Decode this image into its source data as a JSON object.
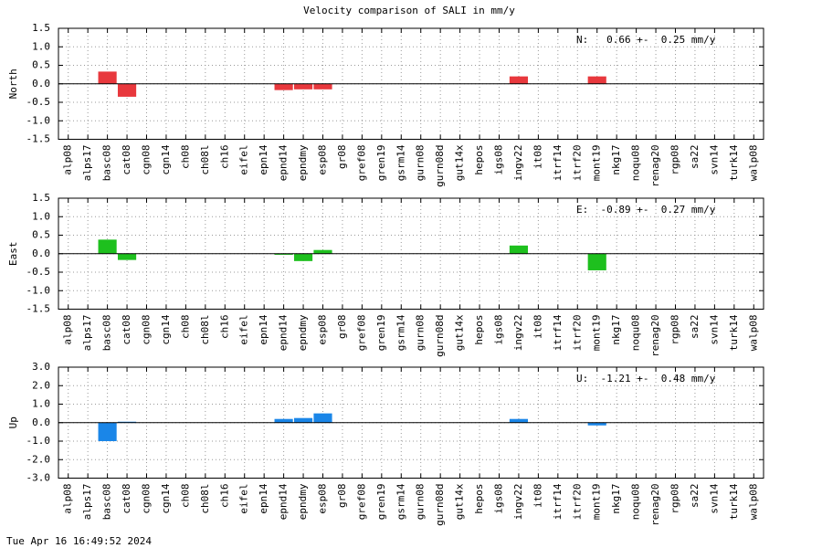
{
  "title": "Velocity comparison of SALI in mm/y",
  "timestamp": "Tue Apr 16 16:49:52 2024",
  "chart_data": [
    {
      "type": "bar",
      "ylabel": "North",
      "annotation": "N:   0.66 +-  0.25 mm/y",
      "color": "#e8383d",
      "categories": [
        "alp08",
        "alps17",
        "basc08",
        "cat08",
        "cgn08",
        "cgn14",
        "ch08",
        "ch08l",
        "ch16",
        "eifel",
        "epn14",
        "epnd14",
        "epndmy",
        "esp08",
        "gr08",
        "gref08",
        "gren19",
        "gsrm14",
        "gurn08",
        "gurn08d",
        "gut14x",
        "hepos",
        "igs08",
        "ingv22",
        "it08",
        "itrf14",
        "itrf20",
        "mont19",
        "nkg17",
        "noqu08",
        "renag20",
        "rgp08",
        "sa22",
        "svn14",
        "turk14",
        "walp08"
      ],
      "values": [
        0,
        0,
        0.33,
        -0.35,
        0,
        0,
        0,
        0,
        0,
        0,
        0,
        -0.17,
        -0.15,
        -0.15,
        0,
        0,
        0,
        0,
        0,
        0,
        0,
        0,
        0,
        0.2,
        0,
        0,
        0,
        0.2,
        0,
        0,
        0,
        0,
        0,
        0,
        0,
        0
      ],
      "ylim": [
        -1.5,
        1.5
      ],
      "yticks": [
        -1.5,
        {
          "value": -1,
          "label": "-1.0"
        },
        -0.5,
        {
          "value": 0,
          "label": "0.0"
        },
        0.5,
        {
          "value": 1,
          "label": "1.0"
        },
        1.5
      ],
      "grid": true
    },
    {
      "type": "bar",
      "ylabel": "East",
      "annotation": "E:  -0.89 +-  0.27 mm/y",
      "color": "#1ec01e",
      "categories": [
        "alp08",
        "alps17",
        "basc08",
        "cat08",
        "cgn08",
        "cgn14",
        "ch08",
        "ch08l",
        "ch16",
        "eifel",
        "epn14",
        "epnd14",
        "epndmy",
        "esp08",
        "gr08",
        "gref08",
        "gren19",
        "gsrm14",
        "gurn08",
        "gurn08d",
        "gut14x",
        "hepos",
        "igs08",
        "ingv22",
        "it08",
        "itrf14",
        "itrf20",
        "mont19",
        "nkg17",
        "noqu08",
        "renag20",
        "rgp08",
        "sa22",
        "svn14",
        "turk14",
        "walp08"
      ],
      "values": [
        0,
        0,
        0.38,
        -0.17,
        0,
        0,
        0,
        0,
        0,
        0,
        0,
        -0.03,
        -0.2,
        0.1,
        0,
        0,
        0,
        0,
        0,
        0,
        0,
        0,
        0,
        0.22,
        0,
        0,
        0,
        -0.45,
        0,
        0,
        0,
        0,
        0,
        0,
        0,
        0
      ],
      "ylim": [
        -1.5,
        1.5
      ],
      "yticks": [
        -1.5,
        {
          "value": -1,
          "label": "-1.0"
        },
        -0.5,
        {
          "value": 0,
          "label": "0.0"
        },
        0.5,
        {
          "value": 1,
          "label": "1.0"
        },
        1.5
      ],
      "grid": true
    },
    {
      "type": "bar",
      "ylabel": "Up",
      "annotation": "U:  -1.21 +-  0.48 mm/y",
      "color": "#1a86e8",
      "categories": [
        "alp08",
        "alps17",
        "basc08",
        "cat08",
        "cgn08",
        "cgn14",
        "ch08",
        "ch08l",
        "ch16",
        "eifel",
        "epn14",
        "epnd14",
        "epndmy",
        "esp08",
        "gr08",
        "gref08",
        "gren19",
        "gsrm14",
        "gurn08",
        "gurn08d",
        "gut14x",
        "hepos",
        "igs08",
        "ingv22",
        "it08",
        "itrf14",
        "itrf20",
        "mont19",
        "nkg17",
        "noqu08",
        "renag20",
        "rgp08",
        "sa22",
        "svn14",
        "turk14",
        "walp08"
      ],
      "values": [
        0,
        0,
        -1.0,
        0.05,
        0,
        0,
        0,
        0,
        0,
        0,
        0,
        0.2,
        0.25,
        0.5,
        0,
        0,
        0,
        0,
        0,
        0,
        0,
        0,
        0,
        0.2,
        0,
        0,
        0,
        -0.15,
        0,
        0,
        0,
        0,
        0,
        0,
        0,
        0
      ],
      "ylim": [
        -3,
        3
      ],
      "yticks": [
        {
          "value": -3,
          "label": "-3.0"
        },
        {
          "value": -2,
          "label": "-2.0"
        },
        {
          "value": -1,
          "label": "-1.0"
        },
        {
          "value": 0,
          "label": "0.0"
        },
        {
          "value": 1,
          "label": "1.0"
        },
        {
          "value": 2,
          "label": "2.0"
        },
        {
          "value": 3,
          "label": "3.0"
        }
      ],
      "grid": true
    }
  ]
}
